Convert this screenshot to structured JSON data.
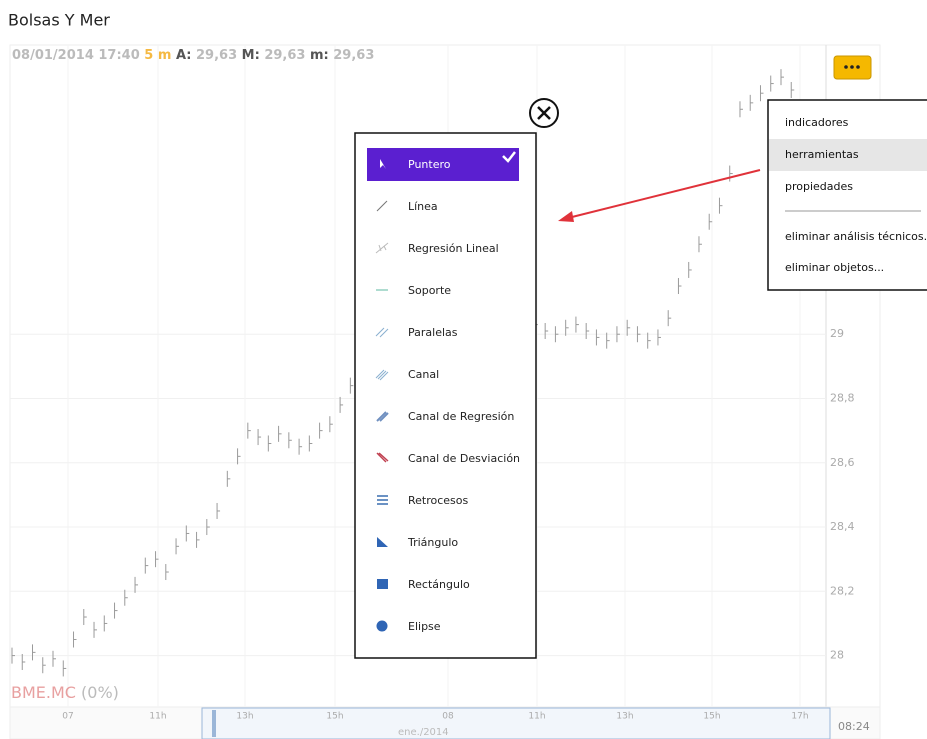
{
  "window_title": "Bolsas Y Mer",
  "header": {
    "datetime": "08/01/2014 17:40",
    "interval": "5 m",
    "a_label": "A:",
    "a_value": "29,63",
    "m_label": "M:",
    "m_value": "29,63",
    "min_label": "m:",
    "min_value": "29,63"
  },
  "chart": {
    "type": "ohlc",
    "symbol": "BME.MC",
    "change": "(0%)",
    "color": "#9a9a9a",
    "ylim": [
      27.84,
      29.9
    ],
    "yticks": [
      {
        "value": 28,
        "label": "28"
      },
      {
        "value": 28.2,
        "label": "28,2"
      },
      {
        "value": 28.4,
        "label": "28,4"
      },
      {
        "value": 28.6,
        "label": "28,6"
      },
      {
        "value": 28.8,
        "label": "28,8"
      },
      {
        "value": 29,
        "label": "29"
      }
    ],
    "values": [
      28.0,
      27.98,
      28.01,
      27.97,
      27.99,
      27.96,
      28.05,
      28.12,
      28.08,
      28.1,
      28.14,
      28.18,
      28.22,
      28.28,
      28.3,
      28.26,
      28.34,
      28.38,
      28.36,
      28.4,
      28.45,
      28.55,
      28.62,
      28.7,
      28.68,
      28.66,
      28.69,
      28.67,
      28.65,
      28.66,
      28.7,
      28.72,
      28.78,
      28.84,
      28.88,
      28.86,
      28.84,
      28.82,
      28.85,
      28.86,
      28.88,
      28.9,
      28.92,
      28.95,
      28.97,
      28.98,
      29.0,
      29.02,
      29.01,
      29.0,
      29.02,
      29.03,
      29.01,
      29.0,
      29.02,
      29.03,
      29.01,
      28.99,
      28.98,
      29.0,
      29.02,
      29.0,
      28.98,
      28.99,
      29.05,
      29.15,
      29.2,
      29.28,
      29.35,
      29.4,
      29.5,
      29.7,
      29.72,
      29.75,
      29.78,
      29.8,
      29.76,
      29.7,
      29.65,
      29.6
    ],
    "navigator_labels": [
      "07",
      "11h",
      "13h",
      "15h",
      "08",
      "11h",
      "13h",
      "15h",
      "17h"
    ],
    "navigator_period": "ene./2014",
    "time": "08:24"
  },
  "tools_menu": {
    "items": [
      "Puntero",
      "Línea",
      "Regresión Lineal",
      "Soporte",
      "Paralelas",
      "Canal",
      "Canal de Regresión",
      "Canal de Desviación",
      "Retrocesos",
      "Triángulo",
      "Rectángulo",
      "Elipse"
    ],
    "selected": 0
  },
  "context_menu": {
    "items": [
      "indicadores",
      "herramientas",
      "propiedades",
      "eliminar análisis técnicos...",
      "eliminar objetos..."
    ],
    "highlighted": 1
  }
}
